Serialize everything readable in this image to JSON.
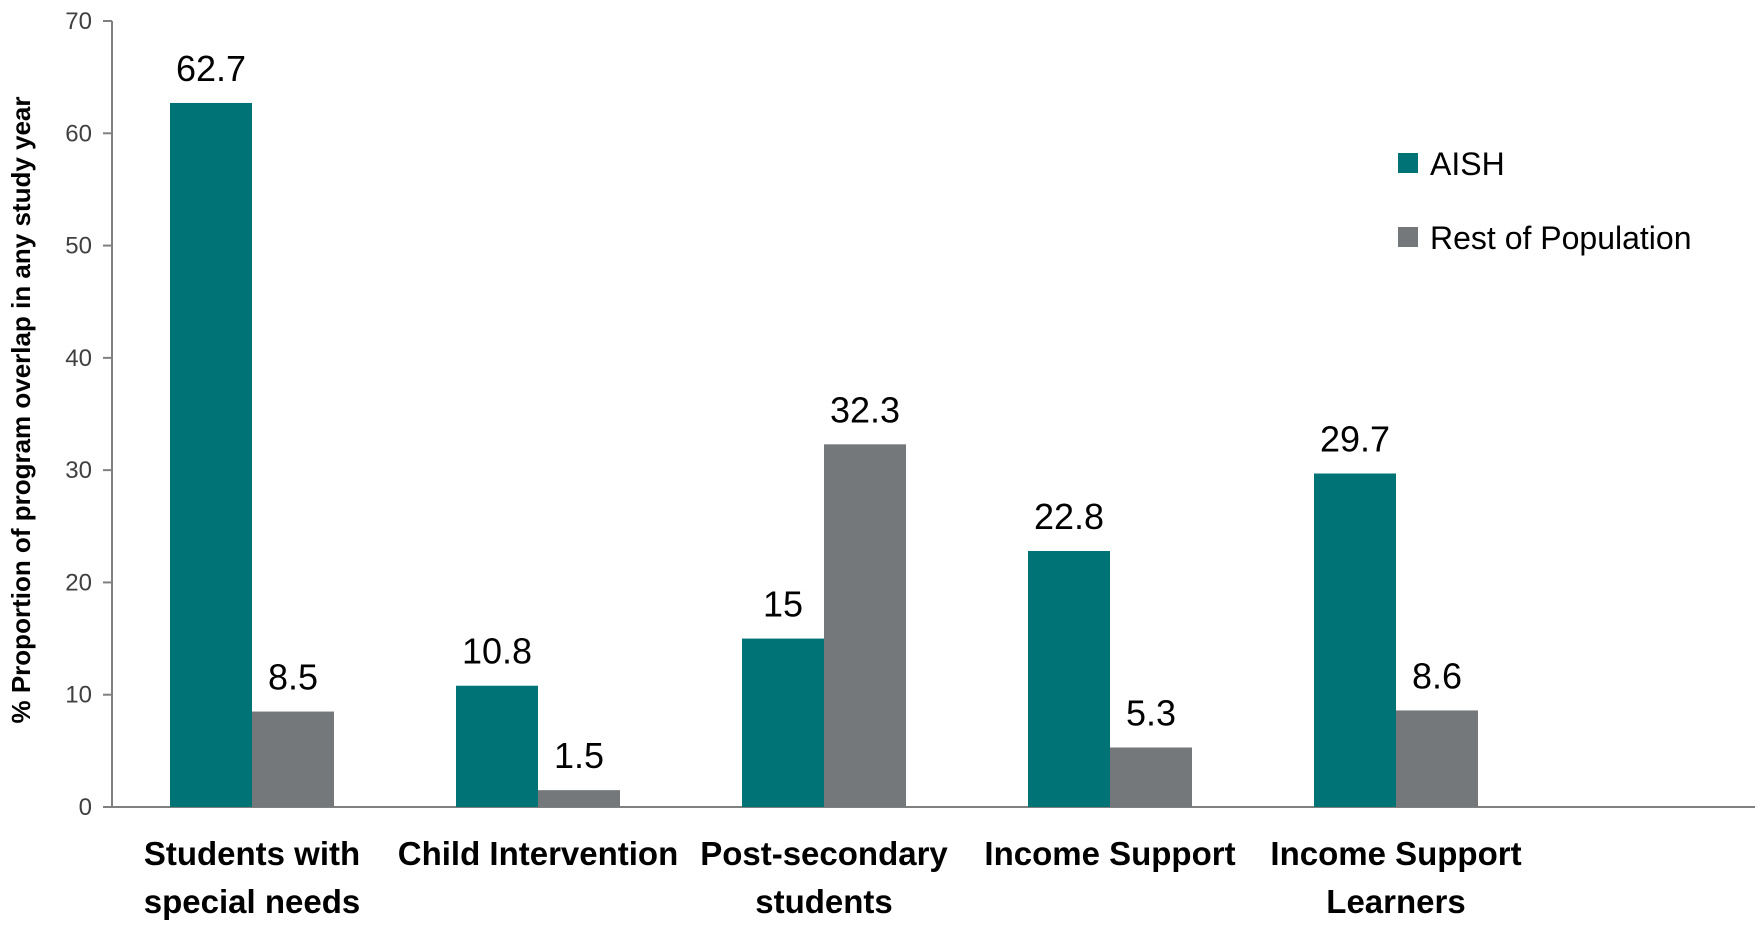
{
  "chart_data": {
    "type": "bar",
    "categories": [
      [
        "Students with",
        "special needs"
      ],
      [
        "Child Intervention"
      ],
      [
        "Post-secondary",
        "students"
      ],
      [
        "Income Support"
      ],
      [
        "Income Support",
        "Learners"
      ]
    ],
    "series": [
      {
        "name": "AISH",
        "color": "#007377",
        "values": [
          62.7,
          10.8,
          15,
          22.8,
          29.7
        ],
        "labels": [
          "62.7",
          "10.8",
          "15",
          "22.8",
          "29.7"
        ]
      },
      {
        "name": "Rest of Population",
        "color": "#75787B",
        "values": [
          8.5,
          1.5,
          32.3,
          5.3,
          8.6
        ],
        "labels": [
          "8.5",
          "1.5",
          "32.3",
          "5.3",
          "8.6"
        ]
      }
    ],
    "ylabel": "% Proportion of program overlap in any study year",
    "xlabel": "",
    "title": "",
    "ylim": [
      0,
      70
    ],
    "yticks": [
      0,
      10,
      20,
      30,
      40,
      50,
      60,
      70
    ],
    "grid": false,
    "legend_position": "top-right"
  }
}
